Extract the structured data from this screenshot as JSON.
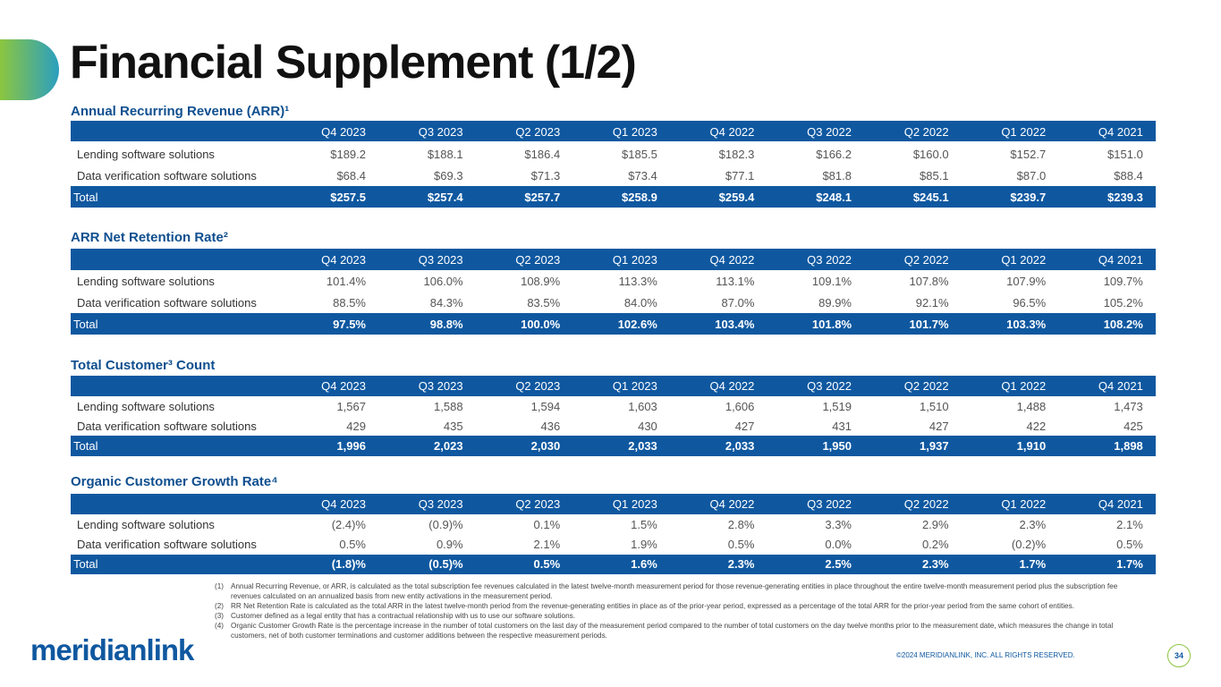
{
  "title": "Financial Supplement (1/2)",
  "tables": [
    {
      "heading": "Annual Recurring Revenue (ARR)¹",
      "columns": [
        "Q4 2023",
        "Q3 2023",
        "Q2 2023",
        "Q1 2023",
        "Q4 2022",
        "Q3 2022",
        "Q2 2022",
        "Q1 2022",
        "Q4 2021"
      ],
      "rows": [
        [
          "Lending software solutions",
          "$189.2",
          "$188.1",
          "$186.4",
          "$185.5",
          "$182.3",
          "$166.2",
          "$160.0",
          "$152.7",
          "$151.0"
        ],
        [
          "Data verification software solutions",
          "$68.4",
          "$69.3",
          "$71.3",
          "$73.4",
          "$77.1",
          "$81.8",
          "$85.1",
          "$87.0",
          "$88.4"
        ],
        [
          "Total",
          "$257.5",
          "$257.4",
          "$257.7",
          "$258.9",
          "$259.4",
          "$248.1",
          "$245.1",
          "$239.7",
          "$239.3"
        ]
      ]
    },
    {
      "heading": "ARR Net Retention Rate²",
      "columns": [
        "Q4 2023",
        "Q3 2023",
        "Q2 2023",
        "Q1 2023",
        "Q4 2022",
        "Q3 2022",
        "Q2 2022",
        "Q1 2022",
        "Q4 2021"
      ],
      "rows": [
        [
          "Lending software solutions",
          "101.4%",
          "106.0%",
          "108.9%",
          "113.3%",
          "113.1%",
          "109.1%",
          "107.8%",
          "107.9%",
          "109.7%"
        ],
        [
          "Data verification software solutions",
          "88.5%",
          "84.3%",
          "83.5%",
          "84.0%",
          "87.0%",
          "89.9%",
          "92.1%",
          "96.5%",
          "105.2%"
        ],
        [
          "Total",
          "97.5%",
          "98.8%",
          "100.0%",
          "102.6%",
          "103.4%",
          "101.8%",
          "101.7%",
          "103.3%",
          "108.2%"
        ]
      ]
    },
    {
      "heading": "Total Customer³ Count",
      "columns": [
        "Q4 2023",
        "Q3 2023",
        "Q2 2023",
        "Q1 2023",
        "Q4 2022",
        "Q3 2022",
        "Q2 2022",
        "Q1 2022",
        "Q4 2021"
      ],
      "rows": [
        [
          "Lending software solutions",
          "1,567",
          "1,588",
          "1,594",
          "1,603",
          "1,606",
          "1,519",
          "1,510",
          "1,488",
          "1,473"
        ],
        [
          "Data verification software solutions",
          "429",
          "435",
          "436",
          "430",
          "427",
          "431",
          "427",
          "422",
          "425"
        ],
        [
          "Total",
          "1,996",
          "2,023",
          "2,030",
          "2,033",
          "2,033",
          "1,950",
          "1,937",
          "1,910",
          "1,898"
        ]
      ]
    },
    {
      "heading": "Organic Customer Growth Rate⁴",
      "columns": [
        "Q4 2023",
        "Q3 2023",
        "Q2 2023",
        "Q1 2023",
        "Q4 2022",
        "Q3 2022",
        "Q2 2022",
        "Q1 2022",
        "Q4 2021"
      ],
      "rows": [
        [
          "Lending software solutions",
          "(2.4)%",
          "(0.9)%",
          "0.1%",
          "1.5%",
          "2.8%",
          "3.3%",
          "2.9%",
          "2.3%",
          "2.1%"
        ],
        [
          "Data verification software solutions",
          "0.5%",
          "0.9%",
          "2.1%",
          "1.9%",
          "0.5%",
          "0.0%",
          "0.2%",
          "(0.2)%",
          "0.5%"
        ],
        [
          "Total",
          "(1.8)%",
          "(0.5)%",
          "0.5%",
          "1.6%",
          "2.3%",
          "2.5%",
          "2.3%",
          "1.7%",
          "1.7%"
        ]
      ]
    }
  ],
  "footnotes": [
    {
      "number": "(1)",
      "text": "Annual Recurring Revenue, or ARR, is calculated as the total subscription fee revenues calculated in the latest twelve-month measurement period for those revenue-generating entities in place throughout the entire twelve-month measurement period plus the subscription fee revenues calculated on an annualized basis from new entity activations in the measurement period."
    },
    {
      "number": "(2)",
      "text": "RR Net Retention Rate is calculated as the total ARR in the latest twelve-month period from the revenue-generating entities in place as of the prior-year period, expressed as a percentage of the total ARR for the prior-year period from the same cohort of entities."
    },
    {
      "number": "(3)",
      "text": "Customer defined as a legal entity that has a contractual relationship with us to use our software solutions."
    },
    {
      "number": "(4)",
      "text": "Organic Customer Growth Rate is the percentage increase in the number of total customers on the last day of the measurement period compared to the number of total customers on the day twelve months prior to the measurement date, which measures the change in total customers, net of both customer terminations and customer additions between the respective measurement periods."
    }
  ],
  "copyright": "©2024 MERIDIANLINK, INC. ALL RIGHTS RESERVED.",
  "logo": "meridianlink",
  "page_number": "34"
}
